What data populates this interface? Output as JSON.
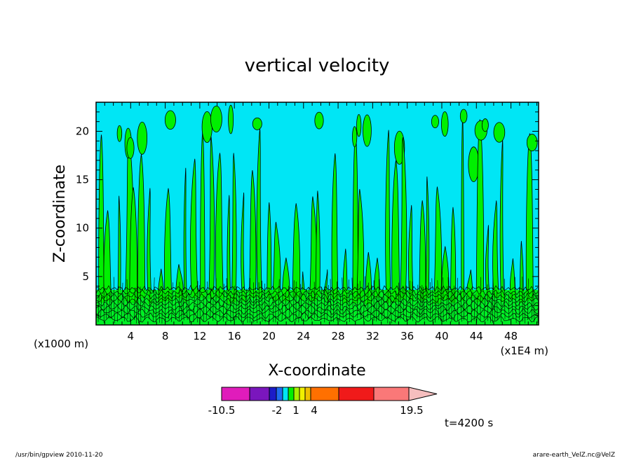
{
  "chart_data": {
    "type": "heatmap",
    "title": "vertical velocity",
    "xlabel": "X-coordinate",
    "ylabel": "Z-coordinate",
    "x_scale_note": "(x1E4 m)",
    "y_scale_note": "(x1000 m)",
    "xlim": [
      0,
      51.2
    ],
    "ylim": [
      0,
      23
    ],
    "x_ticks": [
      4,
      8,
      12,
      16,
      20,
      24,
      28,
      32,
      36,
      40,
      44,
      48
    ],
    "y_ticks": [
      5,
      10,
      15,
      20
    ],
    "colorbar": {
      "colors": [
        "#e01cbb",
        "#7a16bd",
        "#1c1cc8",
        "#1e6cf0",
        "#00e6f5",
        "#00f000",
        "#a8f000",
        "#f0f000",
        "#f0c000",
        "#ff7000",
        "#f01a1a",
        "#fa7878",
        "#f5bebe"
      ],
      "tick_labels": [
        "-10.5",
        "-2",
        "1",
        "4",
        "19.5"
      ]
    },
    "regions": [
      {
        "name": "negative",
        "color": "#00e6f5"
      },
      {
        "name": "positive",
        "color": "#00f000"
      }
    ],
    "time_label": "t=4200 s"
  },
  "footer": {
    "left": "/usr/bin/gpview   2010-11-20",
    "right": "arare-earth_VelZ.nc@VelZ"
  }
}
